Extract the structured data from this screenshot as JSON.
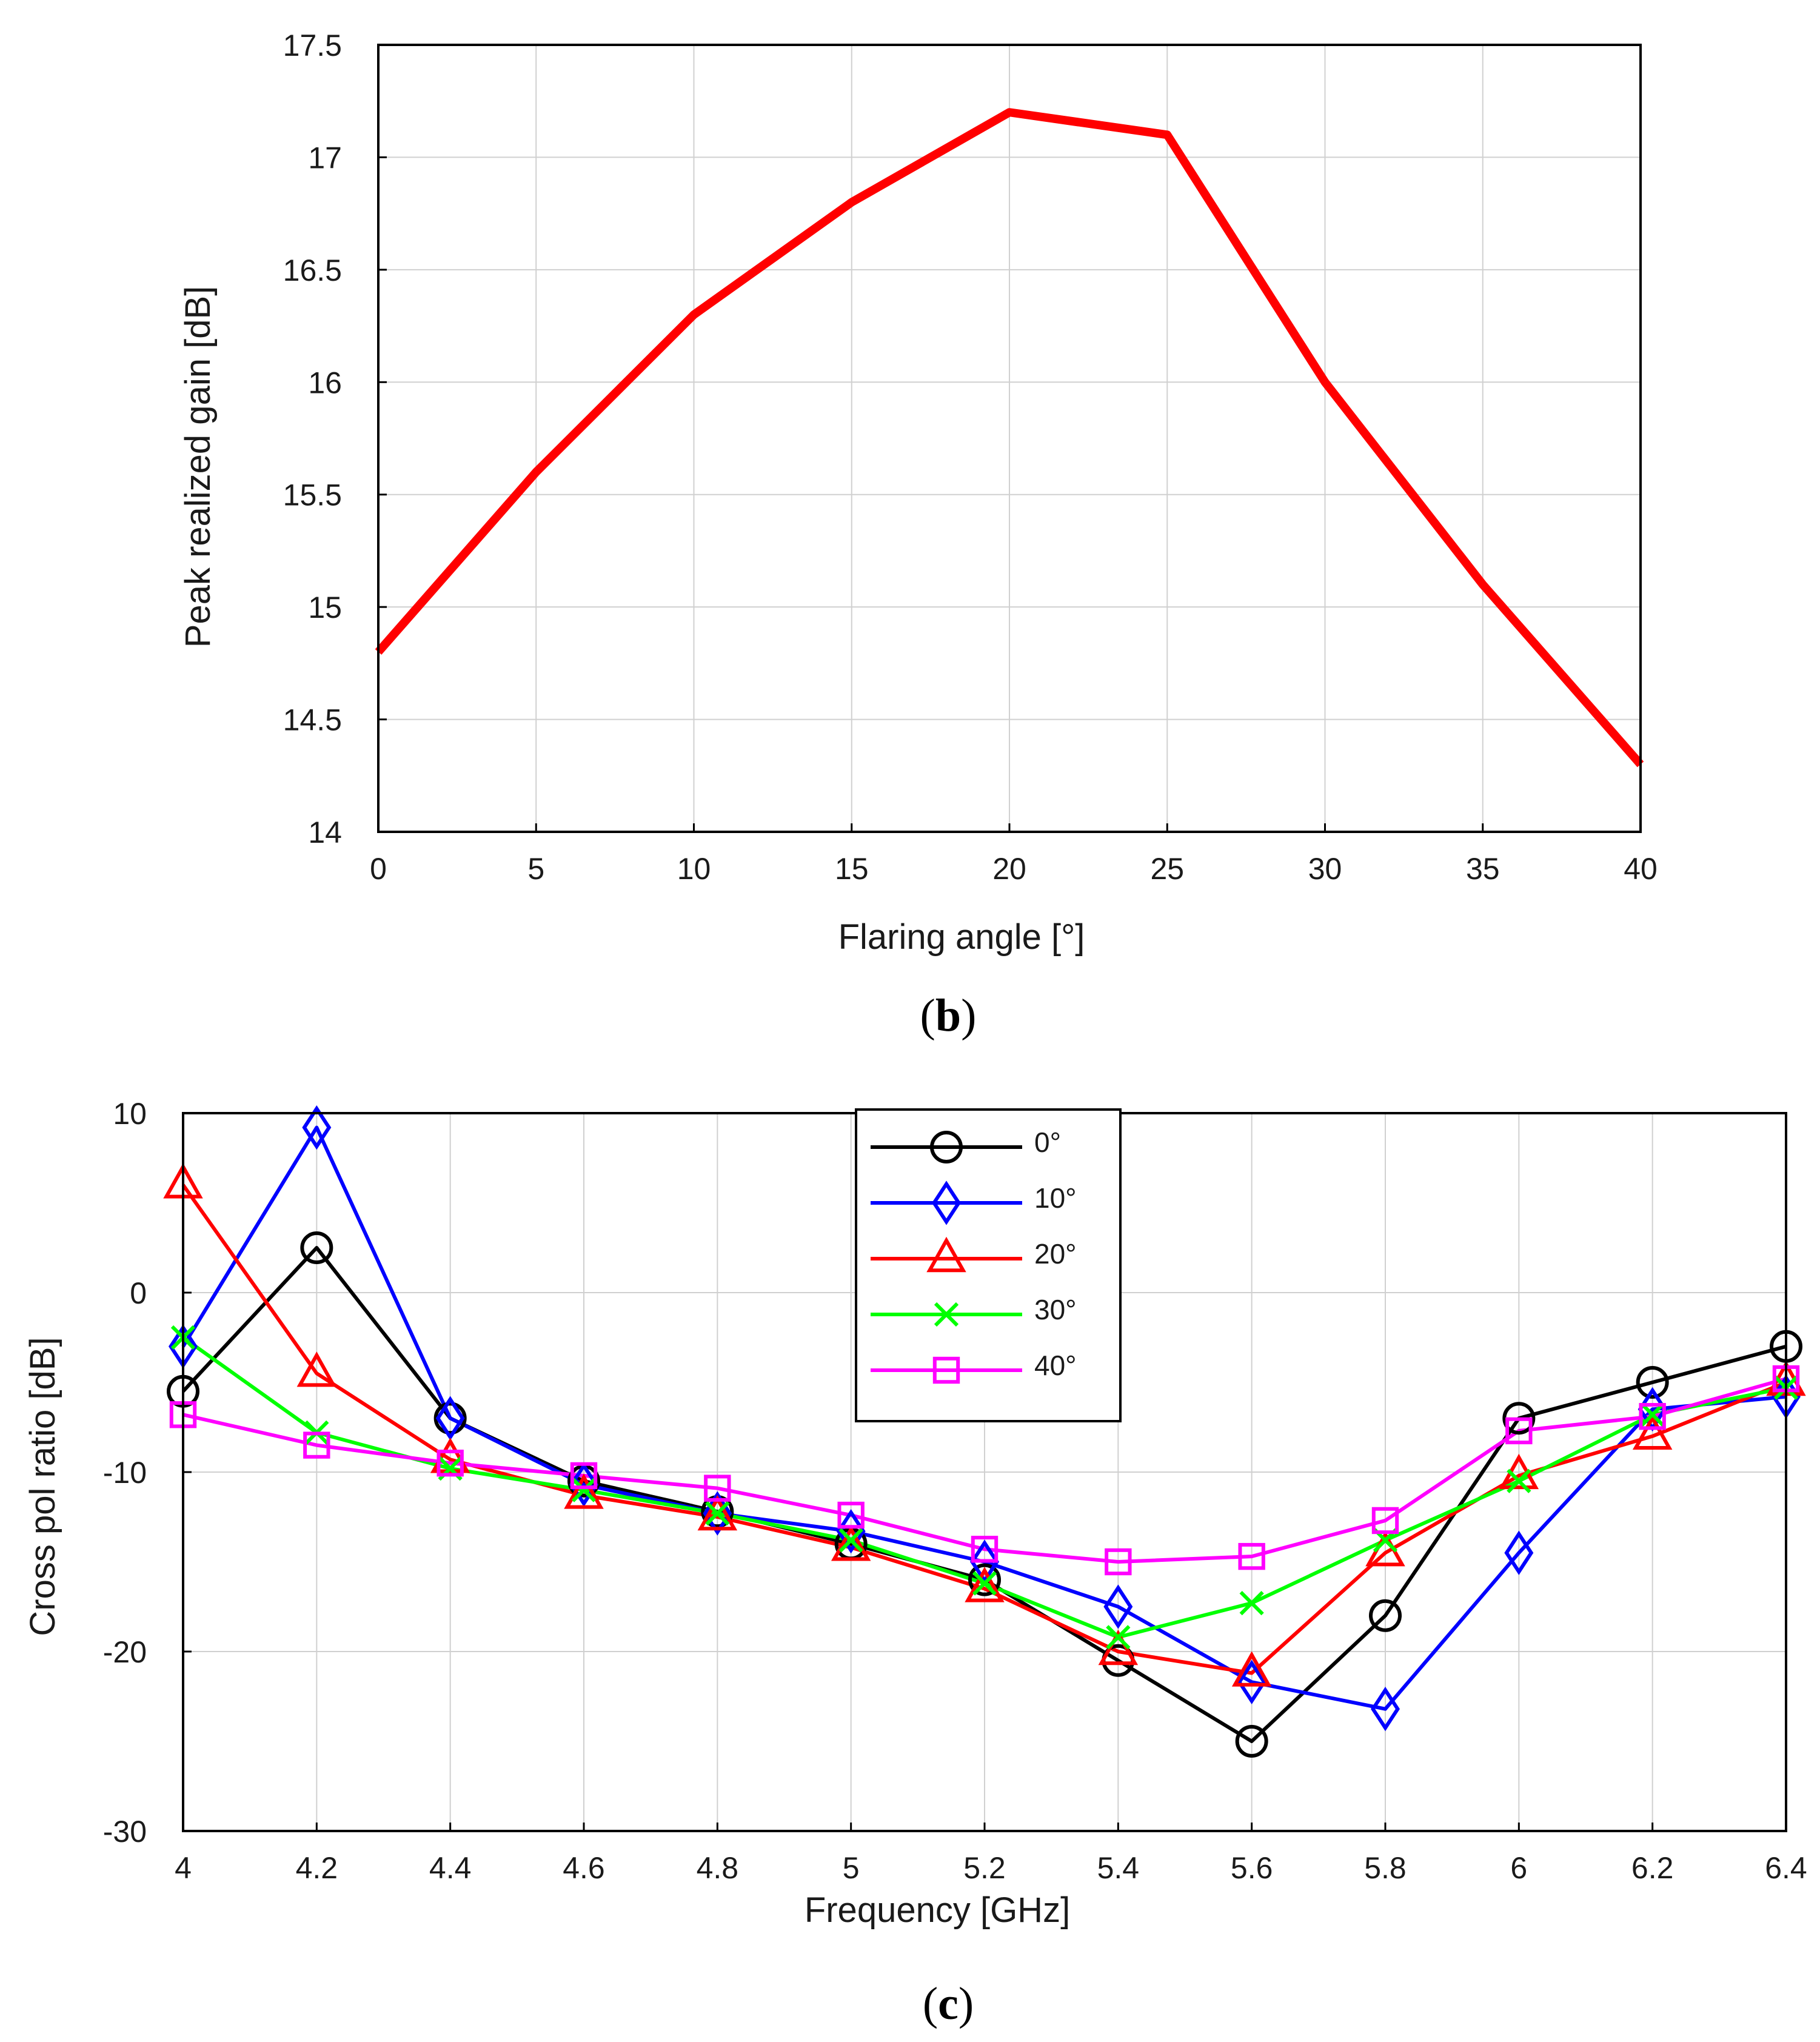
{
  "chart_data": [
    {
      "id": "chart_b",
      "type": "line",
      "caption_open": "(",
      "caption_letter": "b",
      "caption_close": ")",
      "xlabel": "Flaring angle [°]",
      "ylabel": "Peak realized gain [dB]",
      "xlim": [
        0,
        40
      ],
      "ylim": [
        14,
        17.5
      ],
      "xticks": [
        0,
        5,
        10,
        15,
        20,
        25,
        30,
        35,
        40
      ],
      "yticks": [
        14,
        14.5,
        15,
        15.5,
        16,
        16.5,
        17,
        17.5
      ],
      "xtick_labels": [
        "0",
        "5",
        "10",
        "15",
        "20",
        "25",
        "30",
        "35",
        "40"
      ],
      "ytick_labels": [
        "14",
        "14.5",
        "15",
        "15.5",
        "16",
        "16.5",
        "17",
        "17.5"
      ],
      "grid": true,
      "series": [
        {
          "name": "gain",
          "color": "#ff0000",
          "x": [
            0,
            5,
            10,
            15,
            20,
            25,
            30,
            35,
            40
          ],
          "values": [
            14.8,
            15.6,
            16.3,
            16.8,
            17.2,
            17.1,
            16.0,
            15.1,
            14.3
          ]
        }
      ]
    },
    {
      "id": "chart_c",
      "type": "line",
      "caption_open": "(",
      "caption_letter": "c",
      "caption_close": ")",
      "xlabel": "Frequency [GHz]",
      "ylabel": "Cross pol ratio [dB]",
      "xlim": [
        4,
        6.4
      ],
      "ylim": [
        -30,
        10
      ],
      "xticks": [
        4,
        4.2,
        4.4,
        4.6,
        4.8,
        5,
        5.2,
        5.4,
        5.6,
        5.8,
        6,
        6.2,
        6.4
      ],
      "yticks": [
        -30,
        -20,
        -10,
        0,
        10
      ],
      "xtick_labels": [
        "4",
        "4.2",
        "4.4",
        "4.6",
        "4.8",
        "5",
        "5.2",
        "5.4",
        "5.6",
        "5.8",
        "6",
        "6.2",
        "6.4"
      ],
      "ytick_labels": [
        "-30",
        "-20",
        "-10",
        "0",
        "10"
      ],
      "grid": true,
      "legend_position": "top-center",
      "x": [
        4,
        4.2,
        4.4,
        4.6,
        4.8,
        5,
        5.2,
        5.4,
        5.6,
        5.8,
        6,
        6.2,
        6.4
      ],
      "series": [
        {
          "name": "0°",
          "color": "#000000",
          "marker": "circle",
          "values": [
            -5.5,
            2.5,
            -7,
            -10.5,
            -12.2,
            -14,
            -16,
            -20.5,
            -25,
            -18,
            -7,
            -5,
            -3
          ]
        },
        {
          "name": "10°",
          "color": "#0000ff",
          "marker": "diamond",
          "values": [
            -3,
            9.2,
            -7,
            -10.7,
            -12.3,
            -13.3,
            -15,
            -17.5,
            -21.7,
            -23.2,
            -14.5,
            -6.5,
            -5.8
          ]
        },
        {
          "name": "20°",
          "color": "#ff0000",
          "marker": "triangle",
          "values": [
            6,
            -4.5,
            -9.3,
            -11.3,
            -12.5,
            -14.2,
            -16.5,
            -20,
            -21.2,
            -14.5,
            -10.2,
            -8,
            -5
          ]
        },
        {
          "name": "30°",
          "color": "#00ff00",
          "marker": "x",
          "values": [
            -2.5,
            -7.8,
            -9.8,
            -11,
            -12.3,
            -13.8,
            -16.2,
            -19.2,
            -17.3,
            -13.8,
            -10.5,
            -6.8,
            -5.3
          ]
        },
        {
          "name": "40°",
          "color": "#ff00ff",
          "marker": "square",
          "values": [
            -6.8,
            -8.5,
            -9.5,
            -10.2,
            -10.9,
            -12.4,
            -14.3,
            -15,
            -14.7,
            -12.7,
            -7.7,
            -6.9,
            -4.8
          ]
        }
      ]
    }
  ]
}
